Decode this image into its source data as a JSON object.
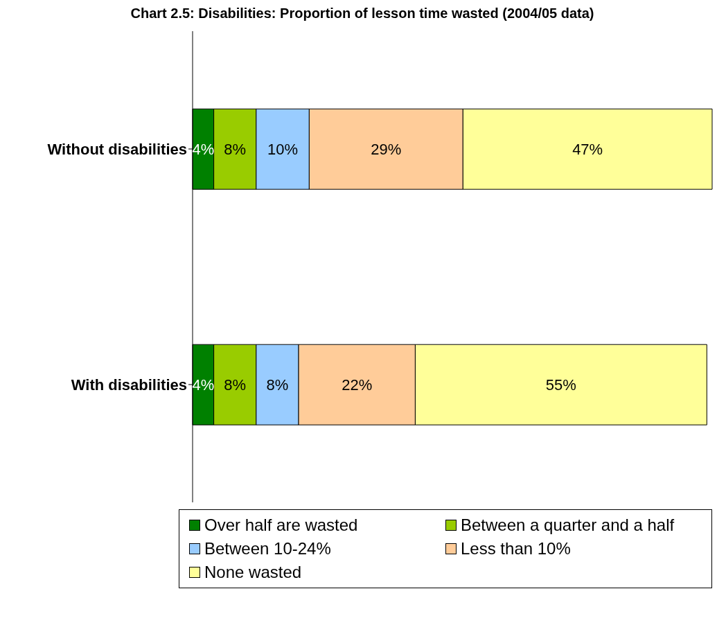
{
  "chart_data": {
    "type": "bar",
    "orientation": "horizontal",
    "stacked": true,
    "title": "Chart 2.5: Disabilities: Proportion of lesson time wasted (2004/05 data)",
    "categories": [
      "Without disabilities",
      "With disabilities"
    ],
    "series": [
      {
        "name": "Over half are wasted",
        "color": "#008000",
        "values": [
          4,
          4
        ],
        "value_labels": [
          "4%",
          "4%"
        ]
      },
      {
        "name": "Between a quarter and a half",
        "color": "#99cc00",
        "values": [
          8,
          8
        ],
        "value_labels": [
          "8%",
          "8%"
        ]
      },
      {
        "name": "Between 10-24%",
        "color": "#99ccff",
        "values": [
          10,
          8
        ],
        "value_labels": [
          "10%",
          "8%"
        ]
      },
      {
        "name": "Less than 10%",
        "color": "#ffcc99",
        "values": [
          29,
          22
        ],
        "value_labels": [
          "29%",
          "22%"
        ]
      },
      {
        "name": "None wasted",
        "color": "#ffff99",
        "values": [
          47,
          55
        ],
        "value_labels": [
          "47%",
          "55%"
        ]
      }
    ],
    "legend": "bottom",
    "grid": false,
    "tick_labels": "y"
  }
}
